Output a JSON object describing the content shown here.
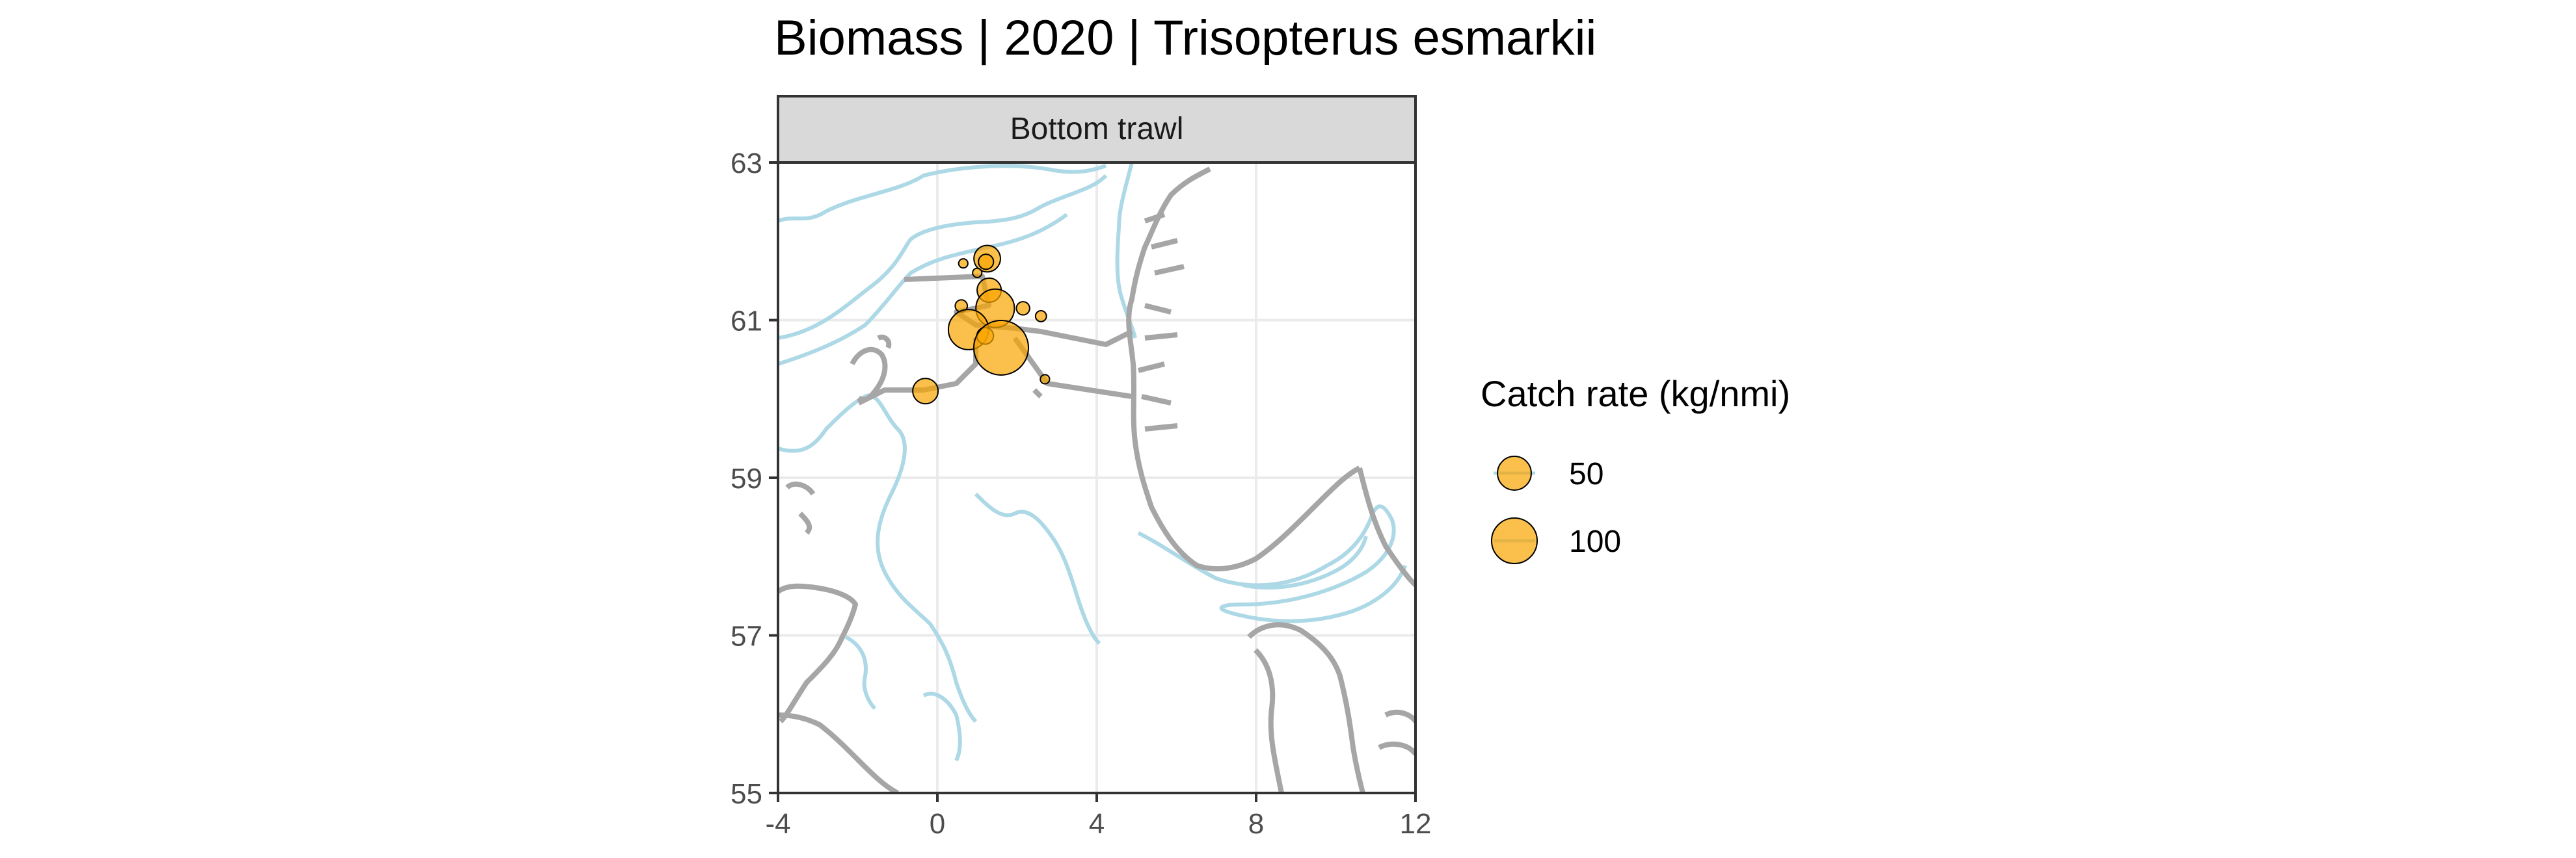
{
  "title": "Biomass | 2020 | Trisopterus esmarkii",
  "panel": {
    "strip_label": "Bottom trawl"
  },
  "axes": {
    "x": {
      "range": [
        -4,
        12
      ],
      "ticks": [
        -4,
        0,
        4,
        8,
        12
      ],
      "tick_labels": [
        "-4",
        "0",
        "4",
        "8",
        "12"
      ]
    },
    "y": {
      "range": [
        55,
        63
      ],
      "ticks": [
        55,
        57,
        59,
        61,
        63
      ],
      "tick_labels": [
        "55",
        "57",
        "59",
        "61",
        "63"
      ]
    }
  },
  "legend": {
    "title": "Catch rate (kg/nmi)",
    "entries": [
      {
        "label": "50",
        "value": 50
      },
      {
        "label": "100",
        "value": 100
      }
    ]
  },
  "colors": {
    "points": "#F9A500",
    "land": "#a6a6a6",
    "depth_contours": "#add8e6",
    "strip_fill": "#d9d9d9",
    "grid": "#ebebeb"
  },
  "chart_data": {
    "type": "map",
    "title": "Biomass | 2020 | Trisopterus esmarkii",
    "facet": "Bottom trawl",
    "xlim": [
      -4,
      12
    ],
    "ylim": [
      55,
      63
    ],
    "grid": true,
    "legend_position": "right",
    "size_legend_title": "Catch rate (kg/nmi)",
    "points": [
      {
        "lon": 1.25,
        "lat": 61.78,
        "catch": 28
      },
      {
        "lon": 1.22,
        "lat": 61.74,
        "catch": 6
      },
      {
        "lon": 0.65,
        "lat": 61.72,
        "catch": 1
      },
      {
        "lon": 1.0,
        "lat": 61.6,
        "catch": 1
      },
      {
        "lon": 1.3,
        "lat": 61.38,
        "catch": 22
      },
      {
        "lon": 1.45,
        "lat": 61.15,
        "catch": 68
      },
      {
        "lon": 0.6,
        "lat": 61.18,
        "catch": 3
      },
      {
        "lon": 2.15,
        "lat": 61.15,
        "catch": 4
      },
      {
        "lon": 2.6,
        "lat": 61.05,
        "catch": 2
      },
      {
        "lon": 0.78,
        "lat": 60.88,
        "catch": 75
      },
      {
        "lon": 1.2,
        "lat": 60.8,
        "catch": 8
      },
      {
        "lon": 1.6,
        "lat": 60.65,
        "catch": 150
      },
      {
        "lon": 2.7,
        "lat": 60.25,
        "catch": 1
      },
      {
        "lon": -0.3,
        "lat": 60.1,
        "catch": 25
      }
    ]
  }
}
